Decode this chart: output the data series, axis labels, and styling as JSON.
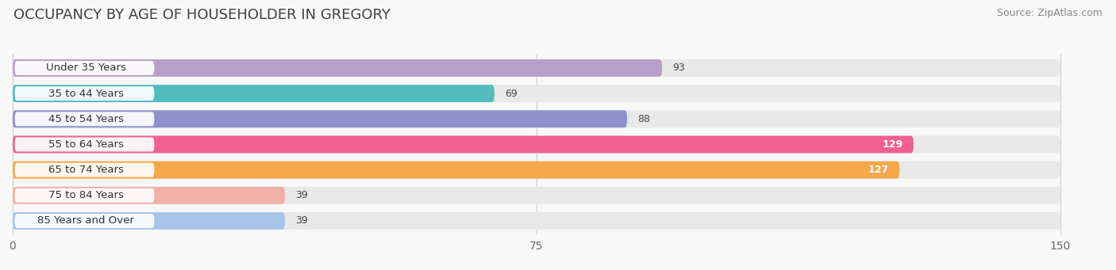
{
  "title": "OCCUPANCY BY AGE OF HOUSEHOLDER IN GREGORY",
  "source": "Source: ZipAtlas.com",
  "categories": [
    "Under 35 Years",
    "35 to 44 Years",
    "45 to 54 Years",
    "55 to 64 Years",
    "65 to 74 Years",
    "75 to 84 Years",
    "85 Years and Over"
  ],
  "values": [
    93,
    69,
    88,
    129,
    127,
    39,
    39
  ],
  "bar_colors": [
    "#b89ec8",
    "#52bbbe",
    "#9090cc",
    "#f06090",
    "#f5a84a",
    "#f0b0a8",
    "#a8c4e8"
  ],
  "bar_bg_color": "#e8e8e8",
  "xlim": [
    0,
    150
  ],
  "xticks": [
    0,
    75,
    150
  ],
  "label_inside_threshold": 100,
  "background_color": "#f8f8f8",
  "title_fontsize": 13,
  "source_fontsize": 9,
  "tick_fontsize": 10,
  "bar_label_fontsize": 9,
  "category_fontsize": 9.5
}
